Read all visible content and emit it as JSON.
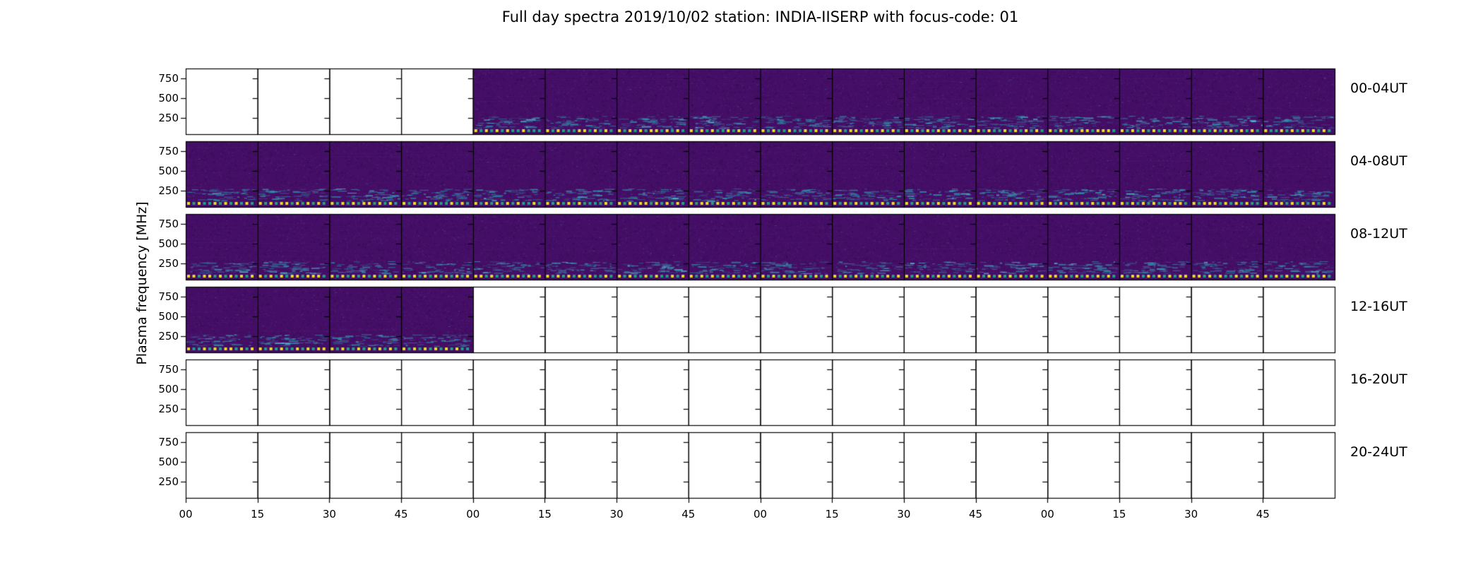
{
  "title": "Full day spectra 2019/10/02 station: INDIA-IISERP with focus-code: 01",
  "ylabel": "Plasma frequency [MHz]",
  "chart_data": {
    "type": "heatmap",
    "title": "Full day spectra 2019/10/02 station: INDIA-IISERP with focus-code: 01",
    "ylabel": "Plasma frequency [MHz]",
    "xlabel": "",
    "legend_position": "none",
    "grid": false,
    "cells_per_row": 16,
    "minutes_per_cell": 15,
    "x_tick_labels": [
      "00",
      "15",
      "30",
      "45",
      "00",
      "15",
      "30",
      "45",
      "00",
      "15",
      "30",
      "45",
      "00",
      "15",
      "30",
      "45"
    ],
    "y_tick_labels": [
      "750",
      "500",
      "250"
    ],
    "y_tick_values": [
      750,
      500,
      250
    ],
    "ylim": [
      0,
      880
    ],
    "rows": [
      {
        "label": "00-04UT",
        "cells": [
          0,
          0,
          0,
          0,
          1,
          1,
          1,
          1,
          1,
          1,
          1,
          1,
          1,
          1,
          1,
          1
        ]
      },
      {
        "label": "04-08UT",
        "cells": [
          1,
          1,
          1,
          1,
          1,
          1,
          1,
          1,
          1,
          1,
          1,
          1,
          1,
          1,
          1,
          1
        ]
      },
      {
        "label": "08-12UT",
        "cells": [
          1,
          1,
          1,
          1,
          1,
          1,
          1,
          1,
          1,
          1,
          1,
          1,
          1,
          1,
          1,
          1
        ]
      },
      {
        "label": "12-16UT",
        "cells": [
          1,
          1,
          1,
          1,
          0,
          0,
          0,
          0,
          0,
          0,
          0,
          0,
          0,
          0,
          0,
          0
        ]
      },
      {
        "label": "16-20UT",
        "cells": [
          0,
          0,
          0,
          0,
          0,
          0,
          0,
          0,
          0,
          0,
          0,
          0,
          0,
          0,
          0,
          0
        ]
      },
      {
        "label": "20-24UT",
        "cells": [
          0,
          0,
          0,
          0,
          0,
          0,
          0,
          0,
          0,
          0,
          0,
          0,
          0,
          0,
          0,
          0
        ]
      }
    ],
    "cell_meaning": {
      "1": "spectrogram data present (viridis dark purple background)",
      "0": "no data (blank panel)"
    },
    "colors": {
      "figure_background": "#ffffff",
      "spectrogram_base": "#440e66",
      "noise_teal": "#2f9bb0",
      "noise_teal_bright": "#55c4d4",
      "dot_yellow": "#e9e125",
      "dot_teal": "#1fa187",
      "axis": "#000000",
      "text": "#000000"
    }
  }
}
